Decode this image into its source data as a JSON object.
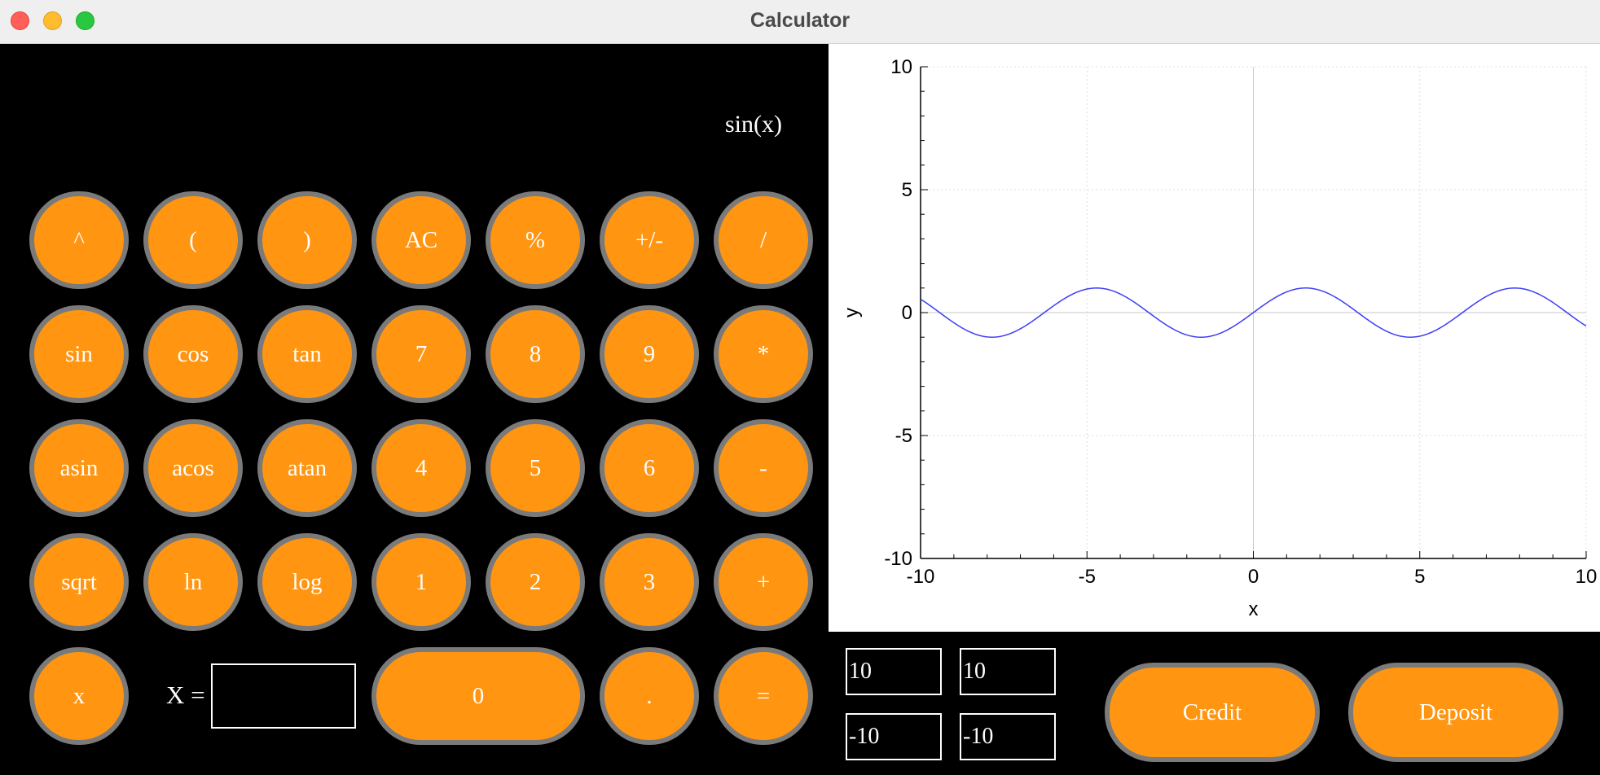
{
  "window": {
    "title": "Calculator"
  },
  "display": {
    "expression": "sin(x)"
  },
  "keypad": {
    "rows": [
      [
        "^",
        "(",
        ")",
        "AC",
        "%",
        "+/-",
        "/"
      ],
      [
        "sin",
        "cos",
        "tan",
        "7",
        "8",
        "9",
        "*"
      ],
      [
        "asin",
        "acos",
        "atan",
        "4",
        "5",
        "6",
        "-"
      ],
      [
        "sqrt",
        "ln",
        "log",
        "1",
        "2",
        "3",
        "+"
      ]
    ],
    "bottom": {
      "x": "x",
      "zero": "0",
      "dot": ".",
      "equals": "="
    }
  },
  "x_input": {
    "label": "X =",
    "value": ""
  },
  "range_inputs": {
    "x_max": "10",
    "y_max": "10",
    "x_min": "-10",
    "y_min": "-10"
  },
  "actions": {
    "credit": "Credit",
    "deposit": "Deposit"
  },
  "colors": {
    "button": "#ff9511",
    "button_border": "#7a7a7a",
    "curve": "#3d3df5"
  },
  "chart_data": {
    "type": "line",
    "function": "sin(x)",
    "xlabel": "x",
    "ylabel": "y",
    "xlim": [
      -10,
      10
    ],
    "ylim": [
      -10,
      10
    ],
    "xticks": [
      "-10",
      "-5",
      "0",
      "5",
      "10"
    ],
    "yticks": [
      "10",
      "5",
      "0",
      "-5",
      "-10"
    ],
    "grid": true
  }
}
